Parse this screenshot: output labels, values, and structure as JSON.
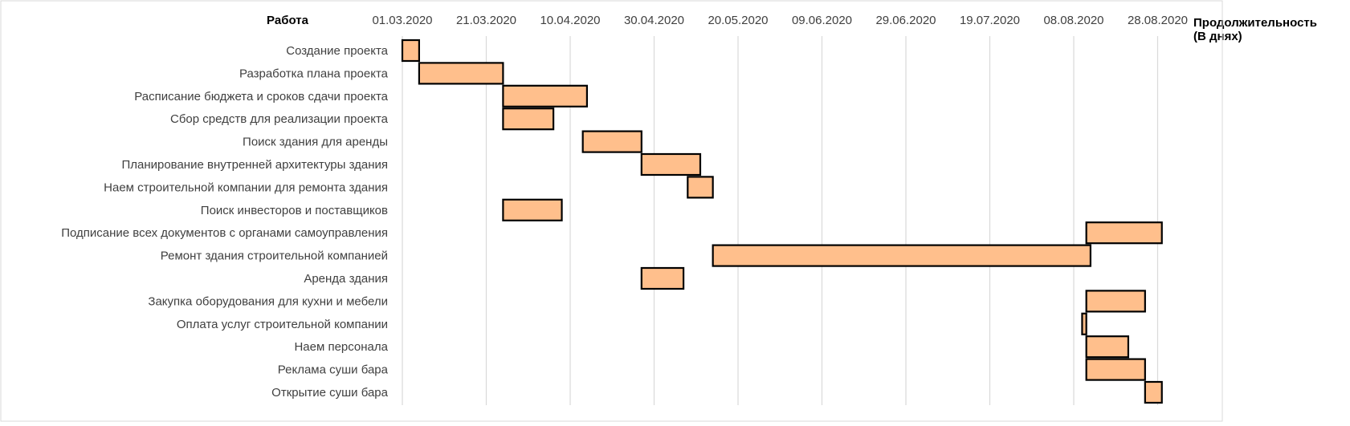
{
  "chart_data": {
    "type": "bar",
    "title": "",
    "ylabel": "Работа",
    "xlabel": "Продолжительность (В днях)",
    "xlabel_lines": [
      "Продолжительность",
      "(В днях)"
    ],
    "x_ticks": [
      "01.03.2020",
      "21.03.2020",
      "10.04.2020",
      "30.04.2020",
      "20.05.2020",
      "09.06.2020",
      "29.06.2020",
      "19.07.2020",
      "08.08.2020",
      "28.08.2020"
    ],
    "xlim": [
      "01.03.2020",
      "06.09.2020"
    ],
    "grid": true,
    "legend": "none",
    "colors": {
      "bar_fill": "#FFBF8C",
      "bar_stroke": "#000000",
      "grid": "#D9D9D9",
      "border": "#D9D9D9"
    },
    "categories": [
      "Создание проекта",
      "Разработка плана проекта",
      "Расписание бюджета и сроков сдачи проекта",
      "Сбор средств для реализации проекта",
      "Поиск здания для аренды",
      "Планирование внутренней архитектуры здания",
      "Наем строительной компании для ремонта здания",
      "Поиск инвесторов и поставщиков",
      "Подписание всех документов с органами самоуправления",
      "Ремонт здания строительной компанией",
      "Аренда здания",
      "Закупка оборудования для кухни и мебели",
      "Оплата услуг строительной компании",
      "Наем персонала",
      "Реклама суши бара",
      "Открытие суши бара"
    ],
    "series": [
      {
        "start": [
          "01.03.2020",
          "05.03.2020",
          "25.03.2020",
          "25.03.2020",
          "13.04.2020",
          "27.04.2020",
          "08.05.2020",
          "25.03.2020",
          "11.08.2020",
          "14.05.2020",
          "27.04.2020",
          "11.08.2020",
          "10.08.2020",
          "11.08.2020",
          "11.08.2020",
          "25.08.2020"
        ],
        "duration_days": [
          4,
          20,
          20,
          12,
          14,
          14,
          6,
          14,
          18,
          90,
          10,
          14,
          1,
          10,
          14,
          4
        ]
      }
    ]
  }
}
